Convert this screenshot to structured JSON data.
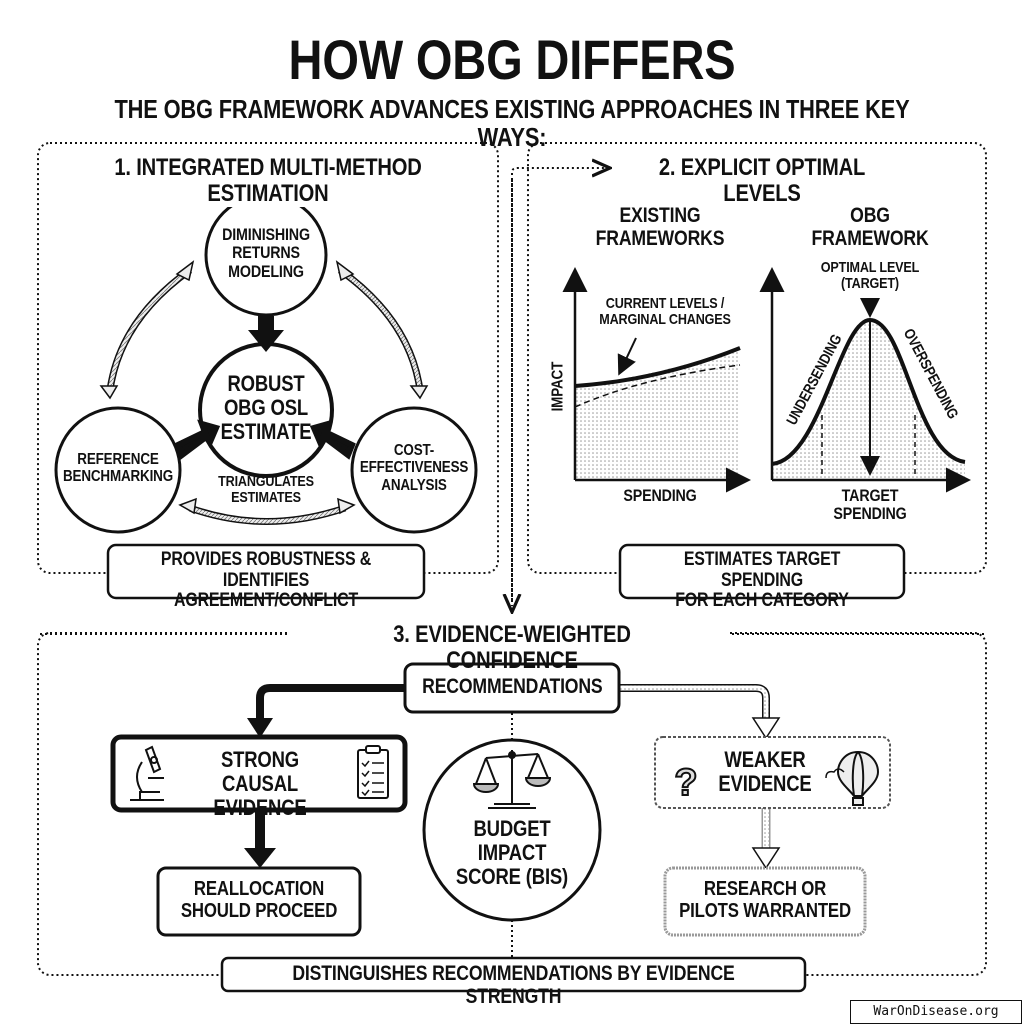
{
  "title": "HOW OBG DIFFERS",
  "subtitle": "THE OBG FRAMEWORK ADVANCES EXISTING APPROACHES IN THREE KEY WAYS:",
  "panel1": {
    "heading": "1. INTEGRATED MULTI-METHOD ESTIMATION",
    "nodes": {
      "top": "DIMINISHING\nRETURNS\nMODELING",
      "center": "ROBUST\nOBG OSL\nESTIMATE",
      "left": "REFERENCE\nBENCHMARKING",
      "right": "COST-\nEFFECTIVENESS\nANALYSIS"
    },
    "triangulates": "TRIANGULATES\nESTIMATES",
    "summary": "PROVIDES ROBUSTNESS &\nIDENTIFIES AGREEMENT/CONFLICT"
  },
  "panel2": {
    "heading": "2. EXPLICIT OPTIMAL LEVELS",
    "left_chart": {
      "title": "EXISTING\nFRAMEWORKS",
      "ylabel": "IMPACT",
      "xlabel": "SPENDING",
      "annotation": "CURRENT LEVELS /\nMARGINAL CHANGES"
    },
    "right_chart": {
      "title": "OBG\nFRAMEWORK",
      "annotation": "OPTIMAL LEVEL\n(TARGET)",
      "left_region": "UNDERSENDING",
      "right_region": "OVERSPENDING",
      "xlabel": "TARGET\nSPENDING"
    },
    "summary": "ESTIMATES TARGET SPENDING\nFOR EACH CATEGORY"
  },
  "panel3": {
    "heading": "3. EVIDENCE-WEIGHTED CONFIDENCE",
    "recommendations": "RECOMMENDATIONS",
    "strong": "STRONG\nCAUSAL EVIDENCE",
    "weaker": "WEAKER\nEVIDENCE",
    "bis": "BUDGET IMPACT\nSCORE (BIS)",
    "reallocation": "REALLOCATION\nSHOULD PROCEED",
    "research": "RESEARCH OR\nPILOTS WARRANTED",
    "summary": "DISTINGUISHES RECOMMENDATIONS BY EVIDENCE STRENGTH"
  },
  "watermark": "WarOnDisease.org"
}
